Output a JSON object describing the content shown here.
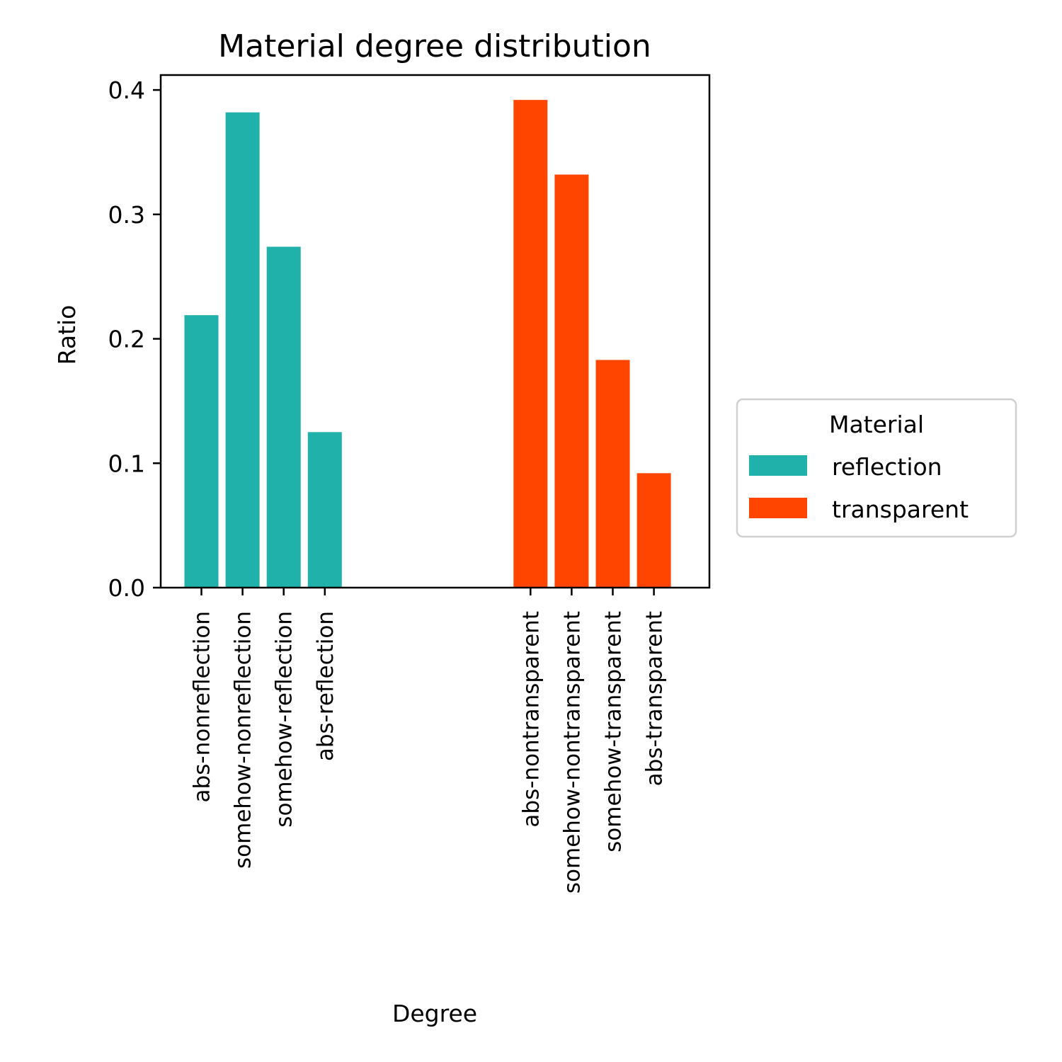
{
  "chart_data": {
    "type": "bar",
    "title": "Material degree distribution",
    "xlabel": "Degree",
    "ylabel": "Ratio",
    "ylim": [
      0,
      0.412
    ],
    "yticks": [
      {
        "value": 0.0,
        "label": "0.0"
      },
      {
        "value": 0.1,
        "label": "0.1"
      },
      {
        "value": 0.2,
        "label": "0.2"
      },
      {
        "value": 0.3,
        "label": "0.3"
      },
      {
        "value": 0.4,
        "label": "0.4"
      }
    ],
    "grid": false,
    "legend": {
      "title": "Material",
      "placement": "center-right, outside plot"
    },
    "series": [
      {
        "name": "reflection",
        "color": "#20b2aa",
        "categories": [
          "abs-nonreflection",
          "somehow-nonreflection",
          "somehow-reflection",
          "abs-reflection"
        ],
        "values": [
          0.219,
          0.382,
          0.274,
          0.125
        ]
      },
      {
        "name": "transparent",
        "color": "#ff4500",
        "categories": [
          "abs-nontransparent",
          "somehow-nontransparent",
          "somehow-transparent",
          "abs-transparent"
        ],
        "values": [
          0.392,
          0.332,
          0.183,
          0.092
        ]
      }
    ]
  }
}
